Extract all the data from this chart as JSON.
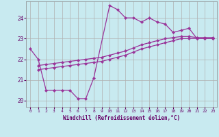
{
  "background_color": "#c8eaf0",
  "grid_color": "#b0b0b0",
  "line_color": "#993399",
  "xlabel": "Windchill (Refroidissement éolien,°C)",
  "xlabel_color": "#660066",
  "tick_color": "#660066",
  "ylim": [
    19.7,
    24.8
  ],
  "xlim": [
    -0.5,
    23.5
  ],
  "yticks": [
    20,
    21,
    22,
    23,
    24
  ],
  "xticks": [
    0,
    1,
    2,
    3,
    4,
    5,
    6,
    7,
    8,
    9,
    10,
    11,
    12,
    13,
    14,
    15,
    16,
    17,
    18,
    19,
    20,
    21,
    22,
    23
  ],
  "series": [
    {
      "x": [
        0,
        1,
        2,
        3,
        4,
        5,
        6,
        7,
        8,
        10,
        11,
        12,
        13,
        14,
        15,
        16,
        17,
        18,
        19,
        20,
        21,
        22,
        23
      ],
      "y": [
        22.5,
        22.0,
        20.5,
        20.5,
        20.5,
        20.5,
        20.1,
        20.1,
        21.1,
        24.6,
        24.4,
        24.0,
        24.0,
        23.8,
        24.0,
        23.8,
        23.7,
        23.3,
        23.4,
        23.5,
        23.0,
        23.0,
        23.0
      ]
    },
    {
      "x": [
        1,
        2,
        3,
        4,
        5,
        6,
        7,
        8,
        9,
        10,
        11,
        12,
        13,
        14,
        15,
        16,
        17,
        18,
        19,
        20,
        21,
        22,
        23
      ],
      "y": [
        21.5,
        21.55,
        21.6,
        21.65,
        21.7,
        21.75,
        21.8,
        21.85,
        21.9,
        22.0,
        22.1,
        22.2,
        22.35,
        22.5,
        22.6,
        22.7,
        22.8,
        22.9,
        23.0,
        23.0,
        23.0,
        23.0,
        23.0
      ]
    },
    {
      "x": [
        1,
        2,
        3,
        4,
        5,
        6,
        7,
        8,
        9,
        10,
        11,
        12,
        13,
        14,
        15,
        16,
        17,
        18,
        19,
        20,
        21,
        22,
        23
      ],
      "y": [
        21.7,
        21.75,
        21.8,
        21.85,
        21.9,
        21.95,
        22.0,
        22.05,
        22.1,
        22.2,
        22.3,
        22.4,
        22.55,
        22.7,
        22.8,
        22.9,
        23.0,
        23.05,
        23.1,
        23.1,
        23.05,
        23.05,
        23.05
      ]
    }
  ]
}
